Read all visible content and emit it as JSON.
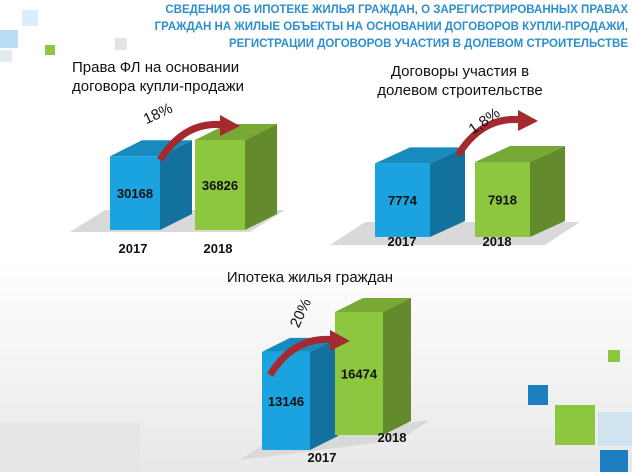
{
  "header": {
    "title": "СВЕДЕНИЯ ОБ ИПОТЕКЕ ЖИЛЬЯ ГРАЖДАН, О ЗАРЕГИСТРИРОВАННЫХ ПРАВАХ ГРАЖДАН НА ЖИЛЫЕ ОБЪЕКТЫ НА ОСНОВАНИИ ДОГОВОРОВ КУПЛИ-ПРОДАЖИ, РЕГИСТРАЦИИ ДОГОВОРОВ УЧАСТИЯ В ДОЛЕВОМ СТРОИТЕЛЬСТВЕ"
  },
  "chart_data": [
    {
      "type": "bar",
      "title": "Права ФЛ на основании договора купли-продажи",
      "categories": [
        "2017",
        "2018"
      ],
      "values": [
        30168,
        36826
      ],
      "colors": [
        "#1ba3e0",
        "#8dc63f"
      ],
      "annotation": "18%"
    },
    {
      "type": "bar",
      "title": "Договоры участия в долевом строительстве",
      "categories": [
        "2017",
        "2018"
      ],
      "values": [
        7774,
        7918
      ],
      "colors": [
        "#1ba3e0",
        "#8dc63f"
      ],
      "annotation": "1,8%"
    },
    {
      "type": "bar",
      "title": "Ипотека жилья граждан",
      "categories": [
        "2017",
        "2018"
      ],
      "values": [
        13146,
        16474
      ],
      "colors": [
        "#1ba3e0",
        "#8dc63f"
      ],
      "annotation": "20%"
    }
  ]
}
